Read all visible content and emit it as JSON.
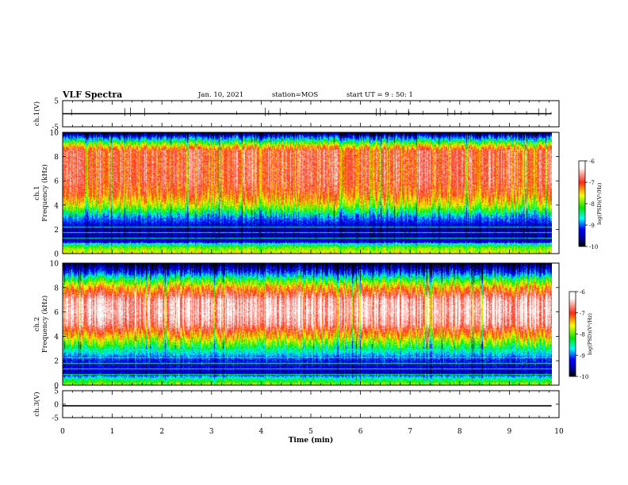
{
  "header": {
    "title": "VLF Spectra",
    "date": "Jan. 10, 2021",
    "station": "station=MOS",
    "start": "start UT =  9 : 50: 1"
  },
  "chart_data": [
    {
      "type": "line",
      "panel": "ch1-waveform",
      "ylabel": "ch.1(V)",
      "ylim": [
        -5,
        5
      ],
      "yticks": [
        "5",
        "-5"
      ],
      "x": [
        0,
        9.85
      ],
      "values": [
        0,
        0
      ]
    },
    {
      "type": "heatmap",
      "panel": "ch1-spectrogram",
      "ylabel": "ch.1\nFrequency (kHz)",
      "ylim": [
        0,
        10
      ],
      "yticks": [
        "0",
        "2",
        "4",
        "6",
        "8",
        "10"
      ],
      "xlim": [
        0,
        10
      ],
      "data_end_min": 9.85,
      "colorbar": {
        "label": "log(PSD)(V²/Hz)",
        "range": [
          -10,
          -6
        ],
        "ticks": [
          "-6",
          "-7",
          "-8",
          "-9",
          "-10"
        ]
      },
      "intensity_profile": [
        {
          "f_khz": 0.0,
          "log_psd": -7.6
        },
        {
          "f_khz": 0.5,
          "log_psd": -8.0
        },
        {
          "f_khz": 1.0,
          "log_psd": -9.5
        },
        {
          "f_khz": 2.0,
          "log_psd": -9.6
        },
        {
          "f_khz": 3.0,
          "log_psd": -8.9
        },
        {
          "f_khz": 4.0,
          "log_psd": -7.7
        },
        {
          "f_khz": 5.0,
          "log_psd": -7.1
        },
        {
          "f_khz": 6.0,
          "log_psd": -6.9
        },
        {
          "f_khz": 7.5,
          "log_psd": -6.9
        },
        {
          "f_khz": 8.5,
          "log_psd": -6.9
        },
        {
          "f_khz": 9.0,
          "log_psd": -7.7
        },
        {
          "f_khz": 9.4,
          "log_psd": -8.6
        },
        {
          "f_khz": 10.0,
          "log_psd": -9.9
        }
      ]
    },
    {
      "type": "heatmap",
      "panel": "ch2-spectrogram",
      "ylabel": "ch.2\nFrequency (kHz)",
      "ylim": [
        0,
        10
      ],
      "yticks": [
        "0",
        "2",
        "4",
        "6",
        "8",
        "10"
      ],
      "xlim": [
        0,
        10
      ],
      "data_end_min": 9.85,
      "colorbar": {
        "label": "log(PSD)(V²/Hz)",
        "range": [
          -10,
          -6
        ],
        "ticks": [
          "-6",
          "-7",
          "-8",
          "-9",
          "-10"
        ]
      },
      "intensity_profile": [
        {
          "f_khz": 0.0,
          "log_psd": -7.8
        },
        {
          "f_khz": 0.5,
          "log_psd": -8.5
        },
        {
          "f_khz": 1.0,
          "log_psd": -9.5
        },
        {
          "f_khz": 2.0,
          "log_psd": -9.2
        },
        {
          "f_khz": 3.0,
          "log_psd": -8.4
        },
        {
          "f_khz": 4.0,
          "log_psd": -7.4
        },
        {
          "f_khz": 5.0,
          "log_psd": -6.6
        },
        {
          "f_khz": 6.0,
          "log_psd": -6.4
        },
        {
          "f_khz": 7.0,
          "log_psd": -6.5
        },
        {
          "f_khz": 8.0,
          "log_psd": -7.3
        },
        {
          "f_khz": 8.6,
          "log_psd": -8.1
        },
        {
          "f_khz": 9.3,
          "log_psd": -9.2
        },
        {
          "f_khz": 10.0,
          "log_psd": -9.9
        }
      ]
    },
    {
      "type": "line",
      "panel": "ch3-waveform",
      "ylabel": "ch.3(V)",
      "ylim": [
        -5,
        5
      ],
      "yticks": [
        "5",
        "0",
        "-5"
      ],
      "x": [
        0,
        9.85
      ],
      "values": [
        -0.6,
        -0.6
      ]
    }
  ],
  "xaxis": {
    "label": "Time (min)",
    "ticks": [
      "0",
      "1",
      "2",
      "3",
      "4",
      "5",
      "6",
      "7",
      "8",
      "9",
      "10"
    ],
    "xlim": [
      0,
      10
    ]
  },
  "colors": {
    "colormap": [
      "#ffffff",
      "#ff2020",
      "#ffff00",
      "#00e000",
      "#00ffff",
      "#0000ff",
      "#000000"
    ]
  }
}
